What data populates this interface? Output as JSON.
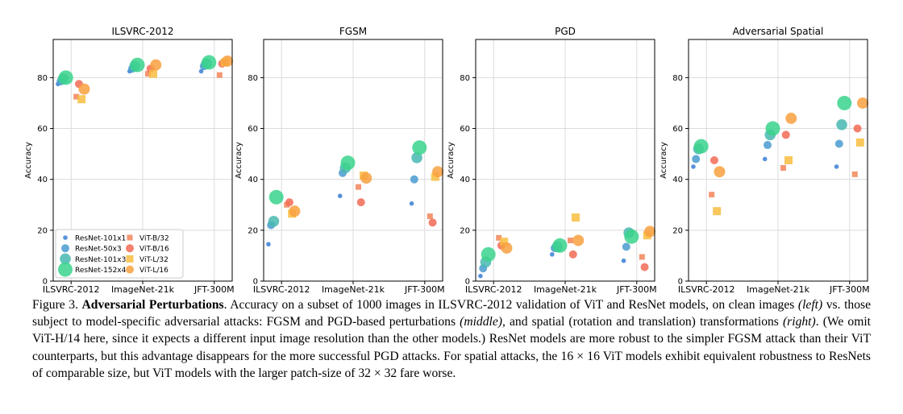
{
  "figure": {
    "categories": [
      "ILSVRC-2012",
      "ImageNet-21k",
      "JFT-300M"
    ],
    "yticks": [
      0,
      20,
      40,
      60,
      80
    ],
    "ylim": [
      0,
      95
    ],
    "ylabel": "Accuracy",
    "legend": {
      "placement": "lower-left of first panel",
      "resnet": [
        {
          "name": "ResNet-101x1",
          "color": "#3a7fd5"
        },
        {
          "name": "ResNet-50x3",
          "color": "#4a9bd0"
        },
        {
          "name": "ResNet-101x3",
          "color": "#48b8b0"
        },
        {
          "name": "ResNet-152x4",
          "color": "#3ad48c"
        }
      ],
      "vit": [
        {
          "name": "ViT-B/32",
          "color": "#f2855a"
        },
        {
          "name": "ViT-B/16",
          "color": "#f26a55"
        },
        {
          "name": "ViT-L/32",
          "color": "#f8bd40"
        },
        {
          "name": "ViT-L/16",
          "color": "#f8a040"
        }
      ]
    }
  },
  "chart_data": [
    {
      "type": "scatter",
      "title": "ILSVRC-2012",
      "xlabel": "",
      "ylabel": "Accuracy",
      "ylim": [
        0,
        95
      ],
      "categories": [
        "ILSVRC-2012",
        "ImageNet-21k",
        "JFT-300M"
      ],
      "series": [
        {
          "name": "ResNet-101x1",
          "values": [
            77.5,
            82.5,
            82.5
          ]
        },
        {
          "name": "ResNet-50x3",
          "values": [
            78.5,
            83.5,
            84.5
          ]
        },
        {
          "name": "ResNet-101x3",
          "values": [
            79.5,
            84.5,
            85.5
          ]
        },
        {
          "name": "ResNet-152x4",
          "values": [
            80.0,
            85.0,
            86.0
          ]
        },
        {
          "name": "ViT-B/32",
          "values": [
            72.5,
            81.5,
            81.0
          ]
        },
        {
          "name": "ViT-B/16",
          "values": [
            77.5,
            83.5,
            85.5
          ]
        },
        {
          "name": "ViT-L/32",
          "values": [
            71.5,
            81.5,
            86.0
          ]
        },
        {
          "name": "ViT-L/16",
          "values": [
            75.5,
            85.0,
            86.5
          ]
        }
      ]
    },
    {
      "type": "scatter",
      "title": "FGSM",
      "xlabel": "",
      "ylabel": "Accuracy",
      "ylim": [
        0,
        95
      ],
      "categories": [
        "ILSVRC-2012",
        "ImageNet-21k",
        "JFT-300M"
      ],
      "series": [
        {
          "name": "ResNet-101x1",
          "values": [
            14.5,
            33.5,
            30.5
          ]
        },
        {
          "name": "ResNet-50x3",
          "values": [
            22.0,
            42.5,
            40.0
          ]
        },
        {
          "name": "ResNet-101x3",
          "values": [
            23.5,
            44.5,
            48.5
          ]
        },
        {
          "name": "ResNet-152x4",
          "values": [
            33.0,
            46.5,
            52.5
          ]
        },
        {
          "name": "ViT-B/32",
          "values": [
            30.0,
            37.0,
            25.5
          ]
        },
        {
          "name": "ViT-B/16",
          "values": [
            31.0,
            31.0,
            23.0
          ]
        },
        {
          "name": "ViT-L/32",
          "values": [
            26.5,
            41.5,
            41.0
          ]
        },
        {
          "name": "ViT-L/16",
          "values": [
            27.5,
            40.5,
            43.0
          ]
        }
      ]
    },
    {
      "type": "scatter",
      "title": "PGD",
      "xlabel": "",
      "ylabel": "Accuracy",
      "ylim": [
        0,
        95
      ],
      "categories": [
        "ILSVRC-2012",
        "ImageNet-21k",
        "JFT-300M"
      ],
      "series": [
        {
          "name": "ResNet-101x1",
          "values": [
            2.0,
            10.5,
            8.0
          ]
        },
        {
          "name": "ResNet-50x3",
          "values": [
            5.0,
            13.0,
            13.5
          ]
        },
        {
          "name": "ResNet-101x3",
          "values": [
            7.5,
            13.5,
            19.0
          ]
        },
        {
          "name": "ResNet-152x4",
          "values": [
            10.5,
            14.0,
            17.5
          ]
        },
        {
          "name": "ViT-B/32",
          "values": [
            17.0,
            16.0,
            9.5
          ]
        },
        {
          "name": "ViT-B/16",
          "values": [
            14.0,
            10.5,
            5.5
          ]
        },
        {
          "name": "ViT-L/32",
          "values": [
            15.5,
            25.0,
            18.0
          ]
        },
        {
          "name": "ViT-L/16",
          "values": [
            13.0,
            16.0,
            19.5
          ]
        }
      ]
    },
    {
      "type": "scatter",
      "title": "Adversarial Spatial",
      "xlabel": "",
      "ylabel": "Accuracy",
      "ylim": [
        0,
        95
      ],
      "categories": [
        "ILSVRC-2012",
        "ImageNet-21k",
        "JFT-300M"
      ],
      "series": [
        {
          "name": "ResNet-101x1",
          "values": [
            45.0,
            48.0,
            45.0
          ]
        },
        {
          "name": "ResNet-50x3",
          "values": [
            48.0,
            53.5,
            54.0
          ]
        },
        {
          "name": "ResNet-101x3",
          "values": [
            52.0,
            57.5,
            61.5
          ]
        },
        {
          "name": "ResNet-152x4",
          "values": [
            53.0,
            60.0,
            70.0
          ]
        },
        {
          "name": "ViT-B/32",
          "values": [
            34.0,
            44.5,
            42.0
          ]
        },
        {
          "name": "ViT-B/16",
          "values": [
            47.5,
            57.5,
            60.0
          ]
        },
        {
          "name": "ViT-L/32",
          "values": [
            27.5,
            47.5,
            54.5
          ]
        },
        {
          "name": "ViT-L/16",
          "values": [
            43.0,
            64.0,
            70.0
          ]
        }
      ]
    }
  ],
  "caption": {
    "figure_label": "Figure 3.",
    "title": "Adversarial Perturbations",
    "p1": ". Accuracy on a subset of 1000 images in ILSVRC-2012 validation of ViT and ResNet models, on clean images ",
    "left": "(left)",
    "p2": " vs. those subject to model-specific adversarial attacks: FGSM and PGD-based perturbations ",
    "middle": "(middle)",
    "p3": ", and spatial (rotation and translation) transformations ",
    "right": "(right)",
    "p4": ". (We omit ViT-H/14 here, since it expects a different input image resolution than the other models.) ResNet models are more robust to the simpler FGSM attack than their ViT counterparts, but this advantage disappears for the more successful PGD attacks. For spatial attacks, the 16 × 16 ViT models exhibit equivalent robustness to ResNets of comparable size, but ViT models with the larger patch-size of 32 × 32 fare worse."
  }
}
